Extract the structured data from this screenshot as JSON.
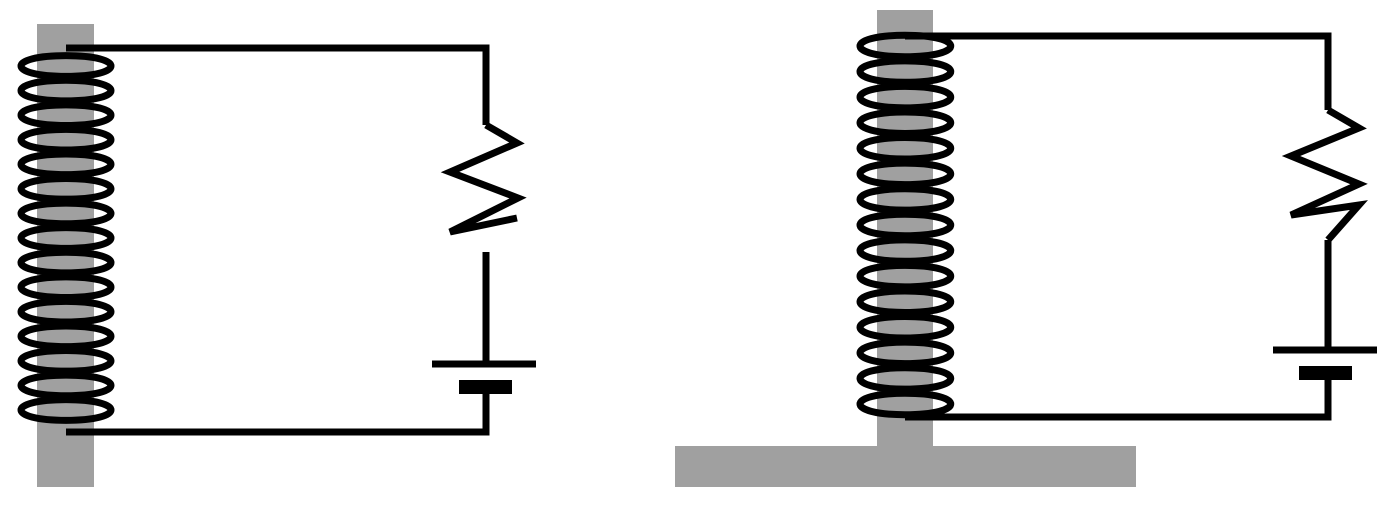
{
  "colors": {
    "background": "#ffffff",
    "wire": "#000000",
    "core": "#a0a0a0"
  },
  "diagrams": [
    {
      "name": "electromagnet-circuit-left",
      "components": [
        "iron-core",
        "coil",
        "wire",
        "resistor",
        "battery"
      ],
      "coil_turns": 15
    },
    {
      "name": "electromagnet-circuit-right",
      "components": [
        "iron-core",
        "base-plate",
        "coil",
        "wire",
        "resistor",
        "battery"
      ],
      "coil_turns": 15
    }
  ]
}
